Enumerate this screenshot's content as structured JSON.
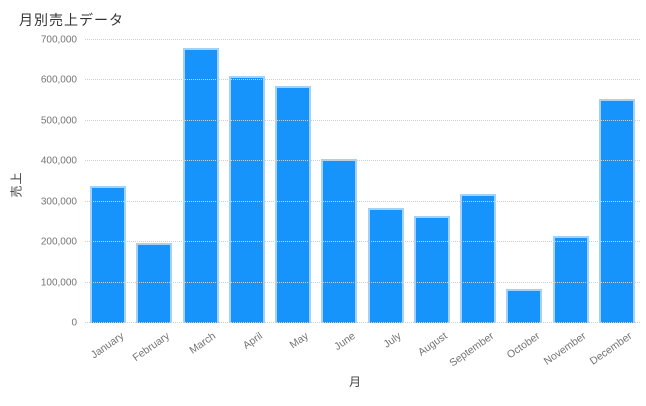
{
  "page": {
    "title": "月別売上データ"
  },
  "chart_data": {
    "type": "bar",
    "title": "月別売上データ",
    "xlabel": "月",
    "ylabel": "売上",
    "categories": [
      "January",
      "February",
      "March",
      "April",
      "May",
      "June",
      "July",
      "August",
      "September",
      "October",
      "November",
      "December"
    ],
    "values": [
      340000,
      197000,
      680000,
      610000,
      586000,
      405000,
      285000,
      264000,
      319000,
      84000,
      215000,
      554000
    ],
    "ylim": [
      0,
      700000
    ],
    "ytick_step": 100000,
    "ytick_labels": [
      "0",
      "100,000",
      "200,000",
      "300,000",
      "400,000",
      "500,000",
      "600,000",
      "700,000"
    ],
    "grid": "horizontal-dotted",
    "legend": "none",
    "bar_color": "#1794fb",
    "bar_border_color": "#a3d1f7",
    "grid_color": "#cfcfcf",
    "tick_label_color": "#757575",
    "title_color": "#333333"
  }
}
